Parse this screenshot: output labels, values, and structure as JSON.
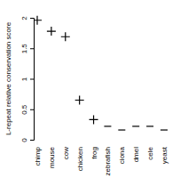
{
  "chart_data": {
    "type": "scatter",
    "y_label": "L-repeat relative conservation score",
    "categories": [
      "chimp",
      "mouse",
      "cow",
      "chicken",
      "frog",
      "zebrafish",
      "ciona",
      "dmel",
      "cele",
      "yeast"
    ],
    "series": [
      {
        "marker": "plus",
        "color": "#000000",
        "values": [
          1.96,
          1.78,
          1.69,
          0.65,
          0.33,
          null,
          null,
          null,
          null,
          null
        ]
      },
      {
        "marker": "dash",
        "color": "#000000",
        "values": [
          null,
          null,
          null,
          null,
          null,
          0.22,
          0.16,
          0.22,
          0.22,
          0.16
        ]
      }
    ],
    "ylim": [
      0,
      2
    ],
    "yticks": [
      0,
      0.5,
      1,
      1.5,
      2
    ]
  }
}
